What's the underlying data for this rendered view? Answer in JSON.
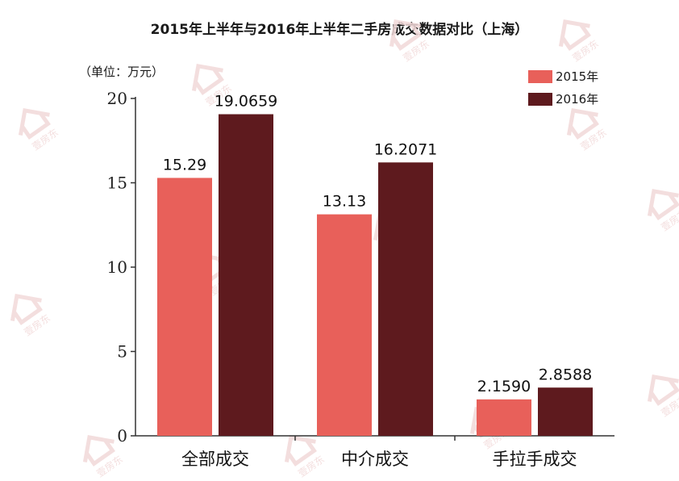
{
  "title": "2015年上半年与2016年上半年二手房成交数据对比（上海）",
  "unit_label": "（单位：万元）",
  "watermark_text": "壹房东",
  "colors": {
    "series_2015": "#E8605A",
    "series_2016": "#5E1A1E",
    "axis": "#333333",
    "watermark": "#F2D9D9"
  },
  "chart_data": {
    "type": "bar",
    "title": "2015年上半年与2016年上半年二手房成交数据对比（上海）",
    "ylabel": "（单位：万元）",
    "xlabel": "",
    "ylim": [
      0,
      20
    ],
    "yticks": [
      0,
      5,
      10,
      15,
      20
    ],
    "grid": false,
    "legend_position": "top-right",
    "categories": [
      "全部成交",
      "中介成交",
      "手拉手成交"
    ],
    "series": [
      {
        "name": "2015年",
        "values": [
          15.29,
          13.13,
          2.159
        ],
        "labels": [
          "15.29",
          "13.13",
          "2.1590"
        ]
      },
      {
        "name": "2016年",
        "values": [
          19.0659,
          16.2071,
          2.8588
        ],
        "labels": [
          "19.0659",
          "16.2071",
          "2.8588"
        ]
      }
    ]
  }
}
